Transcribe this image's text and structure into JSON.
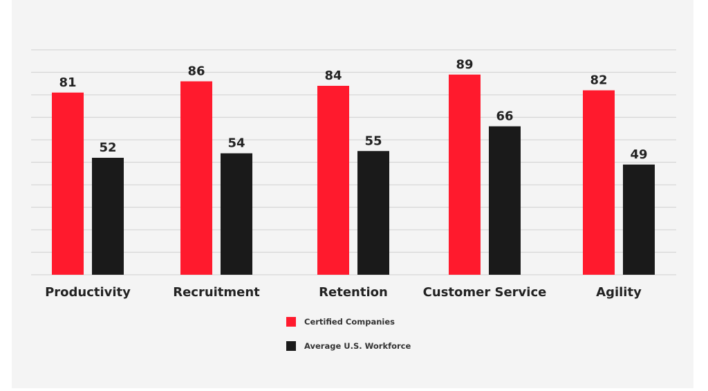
{
  "chart_data": {
    "type": "bar",
    "title": "",
    "xlabel": "",
    "ylabel": "",
    "ylim": [
      0,
      100
    ],
    "grid": true,
    "legend_position": "bottom-center",
    "categories": [
      "Productivity",
      "Recruitment",
      "Retention",
      "Customer Service",
      "Agility"
    ],
    "series": [
      {
        "name": "Certified Companies",
        "color": "#ff1a2d",
        "values": [
          81,
          86,
          84,
          89,
          82
        ]
      },
      {
        "name": "Average U.S. Workforce",
        "color": "#1a1a1a",
        "values": [
          52,
          54,
          55,
          66,
          49
        ]
      }
    ]
  }
}
